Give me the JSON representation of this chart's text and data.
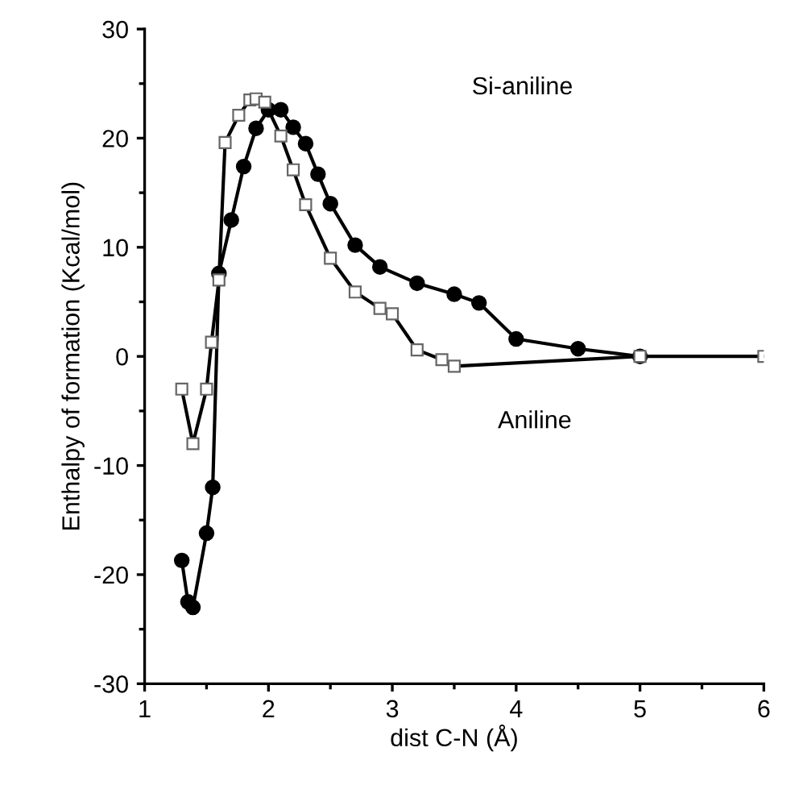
{
  "chart_data": {
    "type": "line",
    "xlabel": "dist C-N (Å)",
    "ylabel": "Enthalpy of formation (Kcal/mol)",
    "xlim": [
      1,
      6
    ],
    "ylim": [
      -30,
      30
    ],
    "xticks": [
      1,
      {
        "value": 1.5,
        "label": null
      },
      2,
      {
        "value": 2.5,
        "label": null
      },
      3,
      {
        "value": 3.5,
        "label": null
      },
      4,
      {
        "value": 4.5,
        "label": null
      },
      5,
      {
        "value": 5.5,
        "label": null
      },
      6
    ],
    "yticks": [
      -30,
      {
        "value": -25,
        "label": null
      },
      -20,
      {
        "value": -15,
        "label": null
      },
      -10,
      {
        "value": -5,
        "label": null
      },
      0,
      {
        "value": 5,
        "label": null
      },
      10,
      {
        "value": 15,
        "label": null
      },
      20,
      {
        "value": 25,
        "label": null
      },
      30
    ],
    "annotations": [
      "Si-aniline",
      "Aniline"
    ],
    "grid": false,
    "legend": false,
    "line_style": "solid",
    "series": [
      {
        "color": "#000000",
        "marker": "circle",
        "x": [
          1.3,
          1.35,
          1.39,
          1.5,
          1.55,
          1.6,
          1.7,
          1.8,
          1.9,
          2.0,
          2.1,
          2.2,
          2.3,
          2.4,
          2.5,
          2.7,
          2.9,
          3.2,
          3.5,
          3.7,
          4.0,
          4.5,
          5.0
        ],
        "values": [
          -18.7,
          -22.5,
          -23.0,
          -16.2,
          -12.0,
          7.6,
          12.5,
          17.4,
          20.9,
          22.6,
          22.6,
          21.0,
          19.5,
          16.7,
          14.0,
          10.2,
          8.2,
          6.7,
          5.7,
          4.9,
          1.6,
          0.7,
          0
        ]
      },
      {
        "color": "#000000",
        "marker": "square",
        "x": [
          1.3,
          1.39,
          1.5,
          1.54,
          1.6,
          1.65,
          1.76,
          1.85,
          1.9,
          1.97,
          2.1,
          2.2,
          2.3,
          2.5,
          2.7,
          2.9,
          3.0,
          3.2,
          3.4,
          3.5,
          5.0,
          6.0
        ],
        "values": [
          -3.0,
          -8.0,
          -3.0,
          1.3,
          7.0,
          19.6,
          22.1,
          23.5,
          23.6,
          23.3,
          20.2,
          17.1,
          13.9,
          9.0,
          5.9,
          4.4,
          3.9,
          0.6,
          -0.3,
          -0.9,
          0,
          0
        ]
      }
    ]
  }
}
